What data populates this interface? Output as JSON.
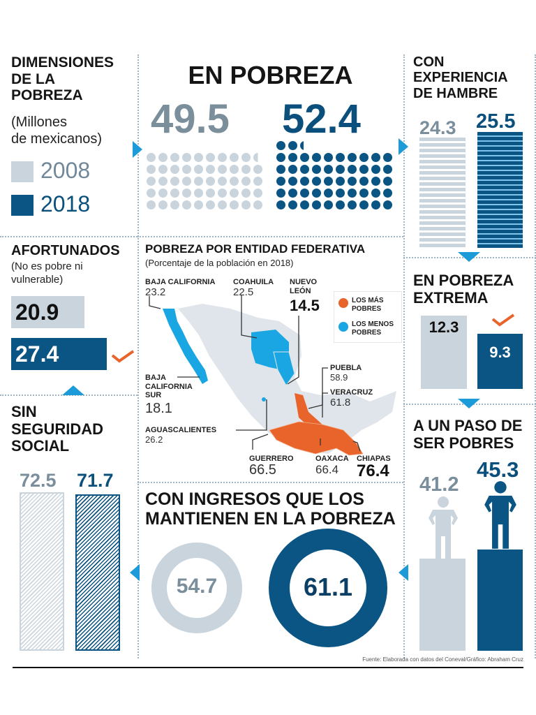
{
  "legend": {
    "title": "DIMENSIONES\nDE LA\nPOBREZA",
    "subtitle": "(Millones\nde mexicanos)",
    "years": [
      "2008",
      "2018"
    ]
  },
  "colors": {
    "y2008": "#c9d4dd",
    "y2018": "#0b5585",
    "value2008": "#70889a",
    "arrow": "#1d9ad8",
    "mas_pobres": "#e8642b",
    "menos_pobres": "#1aa6e2",
    "map_base": "#dfe5ea",
    "check": "#e8642b"
  },
  "chart_data": [
    {
      "type": "pictogram",
      "title": "EN POBREZA",
      "categories": [
        "2008",
        "2018"
      ],
      "values": [
        49.5,
        52.4
      ],
      "unit_per_icon": 1
    },
    {
      "type": "bar",
      "title": "CON\nEXPERIENCIA\nDE HAMBRE",
      "categories": [
        "2008",
        "2018"
      ],
      "values": [
        24.3,
        25.5
      ]
    },
    {
      "type": "bar",
      "title": "EN POBREZA\nEXTREMA",
      "categories": [
        "2008",
        "2018"
      ],
      "values": [
        12.3,
        9.3
      ],
      "highlight": "2018"
    },
    {
      "type": "bar",
      "title": "A UN PASO DE\nSER POBRES",
      "categories": [
        "2008",
        "2018"
      ],
      "values": [
        41.2,
        45.3
      ]
    },
    {
      "type": "bar",
      "orientation": "horizontal",
      "title": "AFORTUNADOS",
      "subtitle": "(No es pobre ni\nvulnerable)",
      "categories": [
        "2008",
        "2018"
      ],
      "values": [
        20.9,
        27.4
      ],
      "highlight": "2018"
    },
    {
      "type": "bar",
      "title": "SIN\nSEGURIDAD\nSOCIAL",
      "categories": [
        "2008",
        "2018"
      ],
      "values": [
        72.5,
        71.7
      ]
    },
    {
      "type": "pie",
      "variant": "donut",
      "title": "CON INGRESOS QUE LOS\nMANTIENEN EN LA POBREZA",
      "categories": [
        "2008",
        "2018"
      ],
      "values": [
        54.7,
        61.1
      ]
    },
    {
      "type": "map",
      "title": "POBREZA POR ENTIDAD FEDERATIVA",
      "subtitle": "(Porcentaje de la población en 2018)",
      "legend": [
        "LOS MÁS\nPOBRES",
        "LOS MENOS\nPOBRES"
      ],
      "states": [
        {
          "name": "BAJA CALIFORNIA",
          "value": 23.2,
          "group": "menos"
        },
        {
          "name": "COAHUILA",
          "value": 22.5,
          "group": "menos"
        },
        {
          "name": "NUEVO\nLEÓN",
          "value": 14.5,
          "group": "menos"
        },
        {
          "name": "BAJA\nCALIFORNIA\nSUR",
          "value": 18.1,
          "group": "menos"
        },
        {
          "name": "AGUASCALIENTES",
          "value": 26.2,
          "group": "menos"
        },
        {
          "name": "PUEBLA",
          "value": 58.9,
          "group": "mas"
        },
        {
          "name": "VERACRUZ",
          "value": 61.8,
          "group": "mas"
        },
        {
          "name": "GUERRERO",
          "value": 66.5,
          "group": "mas"
        },
        {
          "name": "OAXACA",
          "value": 66.4,
          "group": "mas"
        },
        {
          "name": "CHIAPAS",
          "value": 76.4,
          "group": "mas"
        }
      ]
    }
  ],
  "source": "Fuente: Elaborada con datos del Coneval/Gráfico: Abraham Cruz"
}
